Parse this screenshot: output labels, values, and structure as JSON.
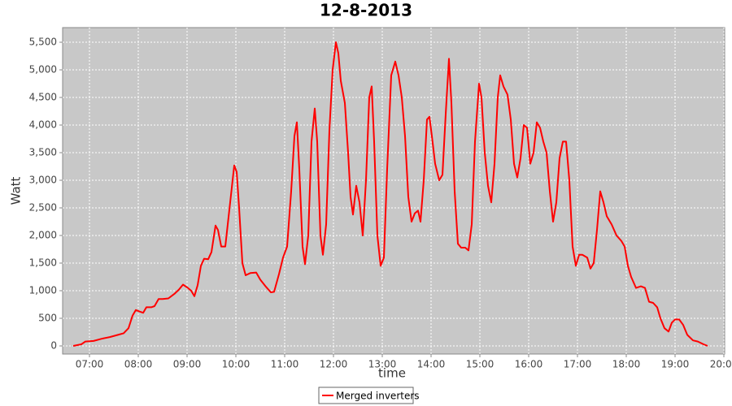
{
  "chart_data": {
    "type": "line",
    "title": "12-8-2013",
    "x_label": "time",
    "y_label": "Watt",
    "x": [
      "06:40",
      "06:50",
      "06:55",
      "07:05",
      "07:15",
      "07:25",
      "07:35",
      "07:42",
      "07:48",
      "07:53",
      "07:57",
      "08:02",
      "08:06",
      "08:10",
      "08:16",
      "08:20",
      "08:25",
      "08:30",
      "08:37",
      "08:45",
      "08:50",
      "08:55",
      "09:01",
      "09:05",
      "09:09",
      "09:13",
      "09:17",
      "09:21",
      "09:26",
      "09:30",
      "09:35",
      "09:38",
      "09:42",
      "09:47",
      "09:53",
      "09:58",
      "10:01",
      "10:04",
      "10:08",
      "10:12",
      "10:18",
      "10:25",
      "10:30",
      "10:37",
      "10:43",
      "10:47",
      "10:53",
      "10:58",
      "11:03",
      "11:08",
      "11:12",
      "11:15",
      "11:18",
      "11:22",
      "11:25",
      "11:29",
      "11:33",
      "11:37",
      "11:40",
      "11:44",
      "11:47",
      "11:51",
      "11:55",
      "11:59",
      "12:03",
      "12:06",
      "12:09",
      "12:14",
      "12:18",
      "12:21",
      "12:24",
      "12:28",
      "12:32",
      "12:36",
      "12:40",
      "12:44",
      "12:47",
      "12:50",
      "12:54",
      "12:58",
      "13:02",
      "13:06",
      "13:11",
      "13:16",
      "13:20",
      "13:24",
      "13:28",
      "13:32",
      "13:36",
      "13:40",
      "13:44",
      "13:47",
      "13:51",
      "13:55",
      "13:58",
      "14:01",
      "14:05",
      "14:10",
      "14:14",
      "14:18",
      "14:22",
      "14:25",
      "14:29",
      "14:33",
      "14:37",
      "14:42",
      "14:46",
      "14:50",
      "14:54",
      "14:59",
      "15:02",
      "15:06",
      "15:10",
      "15:14",
      "15:18",
      "15:22",
      "15:25",
      "15:29",
      "15:34",
      "15:38",
      "15:42",
      "15:46",
      "15:50",
      "15:54",
      "15:58",
      "16:02",
      "16:06",
      "16:10",
      "16:14",
      "16:18",
      "16:22",
      "16:26",
      "16:30",
      "16:34",
      "16:38",
      "16:42",
      "16:46",
      "16:50",
      "16:54",
      "16:58",
      "17:02",
      "17:06",
      "17:12",
      "17:16",
      "17:20",
      "17:24",
      "17:28",
      "17:32",
      "17:36",
      "17:42",
      "17:48",
      "17:54",
      "17:58",
      "18:02",
      "18:06",
      "18:12",
      "18:18",
      "18:23",
      "18:28",
      "18:33",
      "18:38",
      "18:42",
      "18:47",
      "18:52",
      "18:56",
      "19:00",
      "19:05",
      "19:10",
      "19:15",
      "19:22",
      "19:28",
      "19:35",
      "19:40"
    ],
    "series": [
      {
        "name": "Merged inverters",
        "color": "#ff0000",
        "values": [
          0,
          30,
          80,
          90,
          130,
          160,
          200,
          230,
          320,
          550,
          650,
          620,
          600,
          700,
          700,
          720,
          850,
          850,
          860,
          950,
          1020,
          1110,
          1050,
          1000,
          900,
          1100,
          1450,
          1580,
          1570,
          1700,
          2180,
          2100,
          1800,
          1800,
          2600,
          3270,
          3150,
          2500,
          1500,
          1280,
          1320,
          1330,
          1200,
          1070,
          970,
          980,
          1300,
          1600,
          1800,
          2800,
          3800,
          4050,
          3200,
          1800,
          1480,
          2000,
          3700,
          4300,
          3700,
          2000,
          1650,
          2200,
          3900,
          5000,
          5500,
          5300,
          4800,
          4400,
          3500,
          2700,
          2380,
          2900,
          2600,
          2000,
          3000,
          4500,
          4700,
          3700,
          2000,
          1450,
          1600,
          3200,
          4900,
          5150,
          4900,
          4500,
          3800,
          2700,
          2250,
          2400,
          2450,
          2250,
          3000,
          4100,
          4150,
          3800,
          3300,
          3000,
          3100,
          4200,
          5200,
          4400,
          2800,
          1850,
          1780,
          1780,
          1730,
          2200,
          3700,
          4750,
          4500,
          3500,
          2900,
          2600,
          3300,
          4500,
          4900,
          4700,
          4550,
          4100,
          3300,
          3050,
          3400,
          4000,
          3950,
          3300,
          3500,
          4050,
          3950,
          3700,
          3500,
          2800,
          2250,
          2600,
          3400,
          3700,
          3700,
          3000,
          1800,
          1450,
          1650,
          1650,
          1600,
          1400,
          1500,
          2100,
          2800,
          2600,
          2350,
          2200,
          2000,
          1900,
          1800,
          1450,
          1250,
          1050,
          1080,
          1050,
          800,
          780,
          700,
          500,
          320,
          260,
          420,
          480,
          480,
          380,
          200,
          100,
          80,
          30,
          0
        ]
      }
    ],
    "xlim": [
      "06:27",
      "20:01"
    ],
    "xticks": [
      "07:00",
      "08:00",
      "09:00",
      "10:00",
      "11:00",
      "12:00",
      "13:00",
      "14:00",
      "15:00",
      "16:00",
      "17:00",
      "18:00",
      "19:00",
      "20:00"
    ],
    "ylim": [
      -147,
      5765
    ],
    "yticks": [
      0,
      500,
      {
        "value": 1000,
        "label": "1,000"
      },
      {
        "value": 1500,
        "label": "1,500"
      },
      {
        "value": 2000,
        "label": "2,000"
      },
      {
        "value": 2500,
        "label": "2,500"
      },
      {
        "value": 3000,
        "label": "3,000"
      },
      {
        "value": 3500,
        "label": "3,500"
      },
      {
        "value": 4000,
        "label": "4,000"
      },
      {
        "value": 4500,
        "label": "4,500"
      },
      {
        "value": 5000,
        "label": "5,000"
      },
      {
        "value": 5500,
        "label": "5,500"
      }
    ],
    "grid": true
  }
}
